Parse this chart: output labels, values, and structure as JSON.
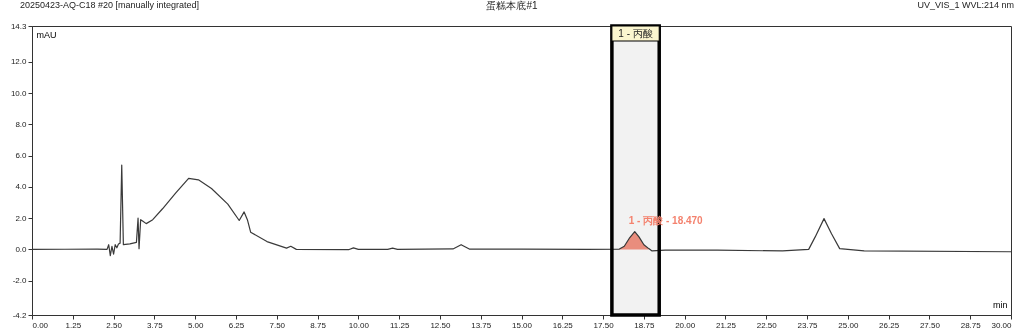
{
  "chart_data": {
    "type": "line",
    "title": "蛋糕本底#1",
    "xlabel": "min",
    "ylabel": "mAU",
    "annotations": [
      "20250423-AQ-C18 #20 [manually integrated]",
      "UV_VIS_1 WVL:214 nm",
      {
        "text": "1 - 丙酸 - 18.470",
        "x": 18.47,
        "y": 1.13
      }
    ],
    "xlim": [
      0,
      30
    ],
    "ylim": [
      -4.2,
      14.3
    ],
    "xticks": [
      {
        "value": 0,
        "label": "0.00"
      },
      {
        "value": 1.25,
        "label": "1.25"
      },
      {
        "value": 2.5,
        "label": "2.50"
      },
      {
        "value": 3.75,
        "label": "3.75"
      },
      {
        "value": 5,
        "label": "5.00"
      },
      {
        "value": 6.25,
        "label": "6.25"
      },
      {
        "value": 7.5,
        "label": "7.50"
      },
      {
        "value": 8.75,
        "label": "8.75"
      },
      {
        "value": 10,
        "label": "10.00"
      },
      {
        "value": 11.25,
        "label": "11.25"
      },
      {
        "value": 12.5,
        "label": "12.50"
      },
      {
        "value": 13.75,
        "label": "13.75"
      },
      {
        "value": 15,
        "label": "15.00"
      },
      {
        "value": 16.25,
        "label": "16.25"
      },
      {
        "value": 17.5,
        "label": "17.50"
      },
      {
        "value": 18.75,
        "label": "18.75"
      },
      {
        "value": 20,
        "label": "20.00"
      },
      {
        "value": 21.25,
        "label": "21.25"
      },
      {
        "value": 22.5,
        "label": "22.50"
      },
      {
        "value": 23.75,
        "label": "23.75"
      },
      {
        "value": 25,
        "label": "25.00"
      },
      {
        "value": 26.25,
        "label": "26.25"
      },
      {
        "value": 27.5,
        "label": "27.50"
      },
      {
        "value": 28.75,
        "label": "28.75"
      },
      {
        "value": 30,
        "label": "30.00"
      }
    ],
    "yticks": [
      {
        "value": -4.2,
        "label": "-4.2"
      },
      {
        "value": -2,
        "label": "-2.0"
      },
      {
        "value": 0,
        "label": "0.0"
      },
      {
        "value": 2,
        "label": "2.0"
      },
      {
        "value": 4,
        "label": "4.0"
      },
      {
        "value": 6,
        "label": "6.0"
      },
      {
        "value": 8,
        "label": "8.0"
      },
      {
        "value": 10,
        "label": "10.0"
      },
      {
        "value": 12,
        "label": "12.0"
      },
      {
        "value": 14.3,
        "label": "14.3"
      }
    ],
    "grid": false,
    "marker": "none",
    "line_style": "solid",
    "bands": [
      {
        "axis": "x",
        "from": 17.77,
        "to": 19.22,
        "label": "1 - 丙酸",
        "color": "#000000"
      }
    ],
    "series": [
      {
        "color": "#3a3a3a",
        "x": [
          0,
          1.0,
          2.0,
          2.3,
          2.35,
          2.4,
          2.45,
          2.5,
          2.55,
          2.6,
          2.65,
          2.7,
          2.75,
          2.8,
          3.0,
          3.2,
          3.25,
          3.28,
          3.33,
          3.4,
          3.5,
          3.7,
          4.0,
          4.4,
          4.8,
          5.1,
          5.5,
          6.0,
          6.35,
          6.5,
          6.6,
          6.7,
          7.2,
          7.8,
          7.93,
          8.1,
          9.7,
          9.85,
          10.0,
          10.9,
          11.05,
          11.2,
          12.9,
          13.15,
          13.4,
          15.0,
          17.0,
          18.0,
          18.15,
          18.3,
          18.47,
          18.6,
          18.75,
          18.9,
          19.0,
          19.4,
          21.0,
          23.0,
          23.8,
          24.0,
          24.27,
          24.5,
          24.75,
          25.5,
          30.0
        ],
        "values": [
          0,
          0.01,
          0.02,
          0.0,
          0.3,
          -0.4,
          0.2,
          -0.3,
          0.3,
          0.1,
          0.35,
          0.4,
          5.4,
          0.3,
          0.35,
          0.45,
          2.0,
          0.05,
          1.9,
          1.8,
          1.65,
          1.9,
          2.6,
          3.6,
          4.55,
          4.45,
          3.9,
          2.9,
          1.85,
          2.4,
          1.9,
          1.1,
          0.5,
          0.08,
          0.2,
          0.0,
          -0.02,
          0.1,
          0.0,
          0.0,
          0.08,
          0.0,
          0.03,
          0.3,
          0.02,
          0.02,
          0.0,
          0.02,
          0.2,
          0.7,
          1.13,
          0.8,
          0.3,
          0.05,
          -0.1,
          -0.05,
          -0.05,
          -0.1,
          0.0,
          0.8,
          1.97,
          1.0,
          0.05,
          -0.1,
          -0.15
        ]
      },
      {
        "type": "area",
        "color": "#f4826e",
        "x": [
          18.0,
          18.15,
          18.3,
          18.47,
          18.6,
          18.75,
          18.9
        ],
        "values": [
          0.02,
          0.2,
          0.7,
          1.13,
          0.8,
          0.3,
          0.05
        ]
      }
    ]
  }
}
